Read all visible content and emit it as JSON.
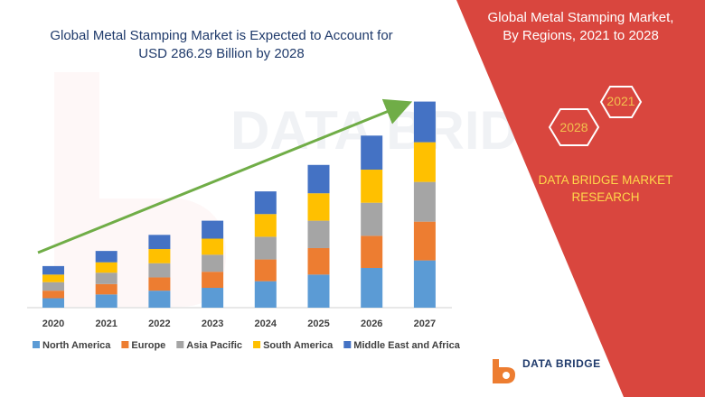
{
  "header": {
    "title_line1": "Global Metal Stamping Market is Expected to Account for",
    "title_line2": "USD 286.29 Billion by 2028"
  },
  "side_panel": {
    "title_line1": "Global Metal Stamping Market,",
    "title_line2": "By Regions, 2021 to 2028",
    "hex_labels": [
      "2021",
      "2028"
    ],
    "brand_line1": "DATA BRIDGE MARKET",
    "brand_line2": "RESEARCH",
    "color": "#d9463e",
    "accent": "#ffd84a"
  },
  "footer": {
    "logo_text": "DATA BRIDGE"
  },
  "chart_data": {
    "type": "bar",
    "stacked": true,
    "categories": [
      "2020",
      "2021",
      "2022",
      "2023",
      "2024",
      "2025",
      "2026",
      "2027"
    ],
    "series": [
      {
        "name": "North America",
        "color": "#5b9bd5",
        "values": [
          10,
          14,
          18,
          21,
          28,
          35,
          42,
          50
        ]
      },
      {
        "name": "Europe",
        "color": "#ed7d31",
        "values": [
          8,
          11,
          14,
          17,
          23,
          28,
          34,
          41
        ]
      },
      {
        "name": "Asia Pacific",
        "color": "#a5a5a5",
        "values": [
          9,
          12,
          15,
          18,
          24,
          29,
          35,
          42
        ]
      },
      {
        "name": "South America",
        "color": "#ffc000",
        "values": [
          8,
          11,
          15,
          17,
          24,
          29,
          35,
          42
        ]
      },
      {
        "name": "Middle East and Africa",
        "color": "#4472c4",
        "values": [
          9,
          12,
          15,
          19,
          24,
          30,
          36,
          43
        ]
      }
    ],
    "ylim": [
      0,
      230
    ],
    "grid": false,
    "legend": "bottom",
    "trend_arrow_color": "#70ad47"
  }
}
